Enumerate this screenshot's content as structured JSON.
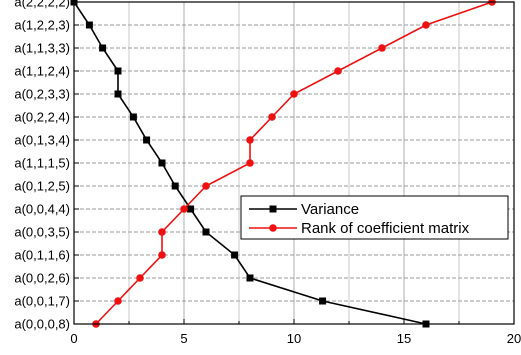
{
  "chart_data": {
    "type": "line",
    "title": "",
    "xlabel": "",
    "ylabel": "",
    "xlim": [
      0,
      20
    ],
    "x_ticks": [
      0,
      5,
      10,
      15,
      20
    ],
    "grid": true,
    "legend_position": "lower-right",
    "categories": [
      "a(0,0,0,8)",
      "a(0,0,1,7)",
      "a(0,0,2,6)",
      "a(0,1,1,6)",
      "a(0,0,3,5)",
      "a(0,0,4,4)",
      "a(0,1,2,5)",
      "a(1,1,1,5)",
      "a(0,1,3,4)",
      "a(0,2,2,4)",
      "a(0,2,3,3)",
      "a(1,1,2,4)",
      "a(1,1,3,3)",
      "a(1,2,2,3)",
      "a(2,2,2,2)"
    ],
    "series": [
      {
        "name": "Variance",
        "color": "#000000",
        "marker": "square",
        "values": [
          16,
          11.3,
          8,
          7.3,
          6,
          5.3,
          4.6,
          4,
          3.3,
          2.7,
          2,
          2,
          1.3,
          0.7,
          0
        ]
      },
      {
        "name": "Rank of coefficient matrix",
        "color": "#ee1111",
        "marker": "circle",
        "values": [
          1,
          2,
          3,
          4,
          4,
          5,
          6,
          8,
          8,
          9,
          10,
          12,
          14,
          16,
          19
        ]
      }
    ]
  }
}
